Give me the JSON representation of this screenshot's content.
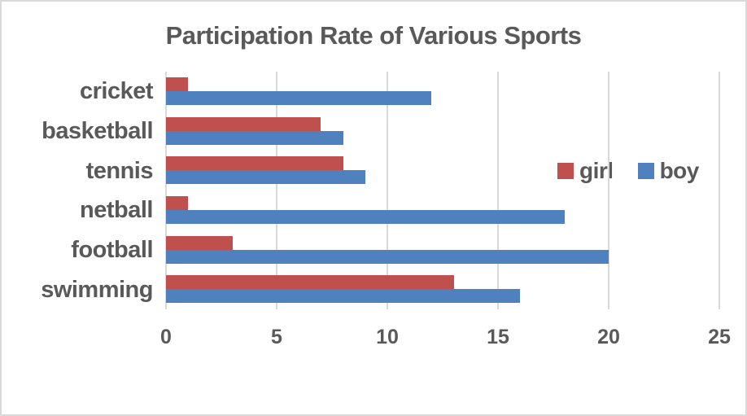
{
  "title": "Participation Rate of Various Sports",
  "colors": {
    "girl": "#C0504D",
    "boy": "#4E81BD",
    "text": "#595959",
    "gridline": "#D9D9D9",
    "frame_border": "#D9D9D9",
    "background": "#FFFFFF"
  },
  "legend": {
    "position": "center-right",
    "items": [
      {
        "label": "girl",
        "color": "#C0504D"
      },
      {
        "label": "boy",
        "color": "#4E81BD"
      }
    ]
  },
  "chart_data": {
    "type": "bar",
    "orientation": "horizontal",
    "title": "Participation Rate of Various Sports",
    "xlabel": "",
    "ylabel": "",
    "categories": [
      "cricket",
      "basketball",
      "tennis",
      "netball",
      "football",
      "swimming"
    ],
    "series": [
      {
        "name": "girl",
        "color": "#C0504D",
        "values": [
          1,
          7,
          8,
          1,
          3,
          13
        ]
      },
      {
        "name": "boy",
        "color": "#4E81BD",
        "values": [
          12,
          8,
          9,
          18,
          20,
          16
        ]
      }
    ],
    "xlim": [
      0,
      25
    ],
    "xticks": [
      0,
      5,
      10,
      15,
      20,
      25
    ],
    "grid": true,
    "legend_position": "center-right"
  }
}
